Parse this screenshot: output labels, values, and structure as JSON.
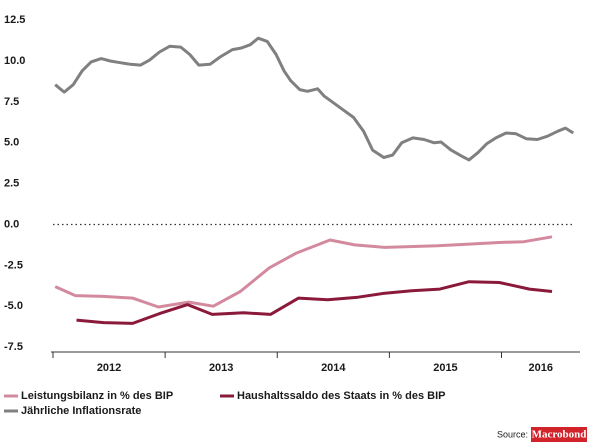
{
  "chart_data": {
    "type": "line",
    "xlim": [
      2012,
      2016.7
    ],
    "xticks": [
      {
        "value": 2012.5,
        "label": "2012"
      },
      {
        "value": 2013.5,
        "label": "2013"
      },
      {
        "value": 2014.5,
        "label": "2014"
      },
      {
        "value": 2015.5,
        "label": "2015"
      },
      {
        "value": 2016.35,
        "label": "2016"
      }
    ],
    "ylim": [
      -7.8,
      13
    ],
    "yticks": [
      {
        "value": 12.5,
        "label": "12.5"
      },
      {
        "value": 10,
        "label": "10.0"
      },
      {
        "value": 7.5,
        "label": "7.5"
      },
      {
        "value": 5,
        "label": "5.0"
      },
      {
        "value": 2.5,
        "label": "2.5"
      },
      {
        "value": 0,
        "label": "0.0"
      },
      {
        "value": -2.5,
        "label": "-2.5"
      },
      {
        "value": -5,
        "label": "-5.0"
      },
      {
        "value": -7.5,
        "label": "-7.5"
      }
    ],
    "zero_line": true,
    "series": [
      {
        "name": "Leistungsbilanz in % des BIP",
        "color": "#d48a9e",
        "x": [
          2012.02,
          2012.2,
          2012.45,
          2012.71,
          2012.94,
          2013.21,
          2013.43,
          2013.67,
          2013.93,
          2014.17,
          2014.47,
          2014.69,
          2014.96,
          2015.18,
          2015.43,
          2015.71,
          2015.98,
          2016.2,
          2016.45
        ],
        "values": [
          -3.8,
          -4.35,
          -4.4,
          -4.5,
          -5.05,
          -4.75,
          -5.0,
          -4.1,
          -2.65,
          -1.75,
          -0.95,
          -1.25,
          -1.4,
          -1.35,
          -1.3,
          -1.2,
          -1.1,
          -1.05,
          -0.75
        ]
      },
      {
        "name": "Haushaltssaldo des Staats in % des BIP",
        "color": "#8b1a3a",
        "x": [
          2012.21,
          2012.45,
          2012.71,
          2012.95,
          2013.2,
          2013.42,
          2013.7,
          2013.94,
          2014.19,
          2014.45,
          2014.72,
          2014.96,
          2015.2,
          2015.45,
          2015.71,
          2015.98,
          2016.25,
          2016.45
        ],
        "values": [
          -5.85,
          -6.0,
          -6.05,
          -5.45,
          -4.9,
          -5.5,
          -5.4,
          -5.5,
          -4.5,
          -4.6,
          -4.45,
          -4.2,
          -4.05,
          -3.95,
          -3.5,
          -3.55,
          -3.95,
          -4.1
        ]
      },
      {
        "name": "Jährliche Inflationsrate",
        "color": "#808080",
        "x": [
          2012.02,
          2012.1,
          2012.18,
          2012.26,
          2012.34,
          2012.43,
          2012.51,
          2012.6,
          2012.69,
          2012.78,
          2012.86,
          2012.95,
          2013.04,
          2013.14,
          2013.22,
          2013.3,
          2013.4,
          2013.49,
          2013.6,
          2013.68,
          2013.76,
          2013.83,
          2013.91,
          2013.99,
          2014.06,
          2014.12,
          2014.2,
          2014.27,
          2014.36,
          2014.42,
          2014.5,
          2014.59,
          2014.68,
          2014.77,
          2014.85,
          2014.95,
          2015.03,
          2015.11,
          2015.21,
          2015.31,
          2015.4,
          2015.46,
          2015.55,
          2015.64,
          2015.71,
          2015.79,
          2015.87,
          2015.95,
          2016.04,
          2016.13,
          2016.22,
          2016.32,
          2016.41,
          2016.5,
          2016.57,
          2016.64
        ],
        "values": [
          8.55,
          8.1,
          8.55,
          9.4,
          9.95,
          10.15,
          10.0,
          9.9,
          9.8,
          9.75,
          10.05,
          10.55,
          10.9,
          10.85,
          10.4,
          9.75,
          9.8,
          10.25,
          10.7,
          10.8,
          11.0,
          11.4,
          11.2,
          10.4,
          9.4,
          8.8,
          8.25,
          8.15,
          8.3,
          7.85,
          7.45,
          7.0,
          6.55,
          5.7,
          4.55,
          4.1,
          4.25,
          5.0,
          5.3,
          5.2,
          5.0,
          5.05,
          4.55,
          4.2,
          3.95,
          4.4,
          4.95,
          5.3,
          5.6,
          5.55,
          5.25,
          5.2,
          5.4,
          5.7,
          5.9,
          5.6
        ]
      }
    ],
    "source": "Source:",
    "source_brand": "Macrobond"
  }
}
